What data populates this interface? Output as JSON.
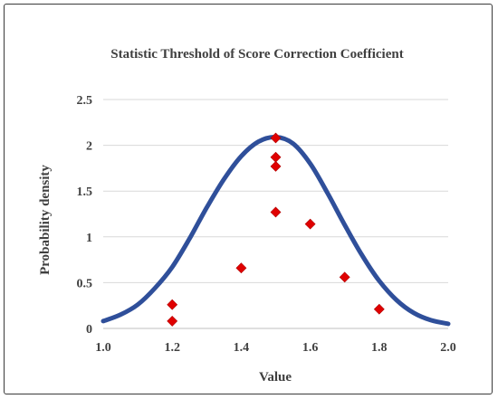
{
  "chart_data": {
    "type": "scatter",
    "title": "Statistic Threshold of Score Correction Coefficient",
    "xlabel": "Value",
    "ylabel": "Probability density",
    "xlim": [
      1.0,
      2.0
    ],
    "ylim": [
      0,
      2.5
    ],
    "x_ticks": [
      "1.0",
      "1.2",
      "1.4",
      "1.6",
      "1.8",
      "2.0"
    ],
    "y_ticks": [
      "0",
      "0.5",
      "1",
      "1.5",
      "2",
      "2.5"
    ],
    "grid": "horizontal",
    "legend": "none",
    "series": [
      {
        "type": "line",
        "color": "#2f4f9a",
        "x": [
          1.0,
          1.05,
          1.1,
          1.15,
          1.2,
          1.25,
          1.3,
          1.35,
          1.4,
          1.45,
          1.5,
          1.55,
          1.6,
          1.65,
          1.7,
          1.75,
          1.8,
          1.85,
          1.9,
          1.95,
          2.0
        ],
        "y": [
          0.08,
          0.15,
          0.26,
          0.44,
          0.67,
          0.98,
          1.32,
          1.63,
          1.88,
          2.04,
          2.09,
          2.02,
          1.8,
          1.48,
          1.13,
          0.8,
          0.52,
          0.31,
          0.17,
          0.09,
          0.05
        ]
      },
      {
        "type": "scatter",
        "marker": "diamond",
        "color": "#e00000",
        "x": [
          1.2,
          1.2,
          1.4,
          1.5,
          1.5,
          1.5,
          1.5,
          1.6,
          1.7,
          1.8
        ],
        "y": [
          0.08,
          0.26,
          0.66,
          2.08,
          1.87,
          1.77,
          1.27,
          1.14,
          0.56,
          0.21
        ]
      }
    ]
  }
}
